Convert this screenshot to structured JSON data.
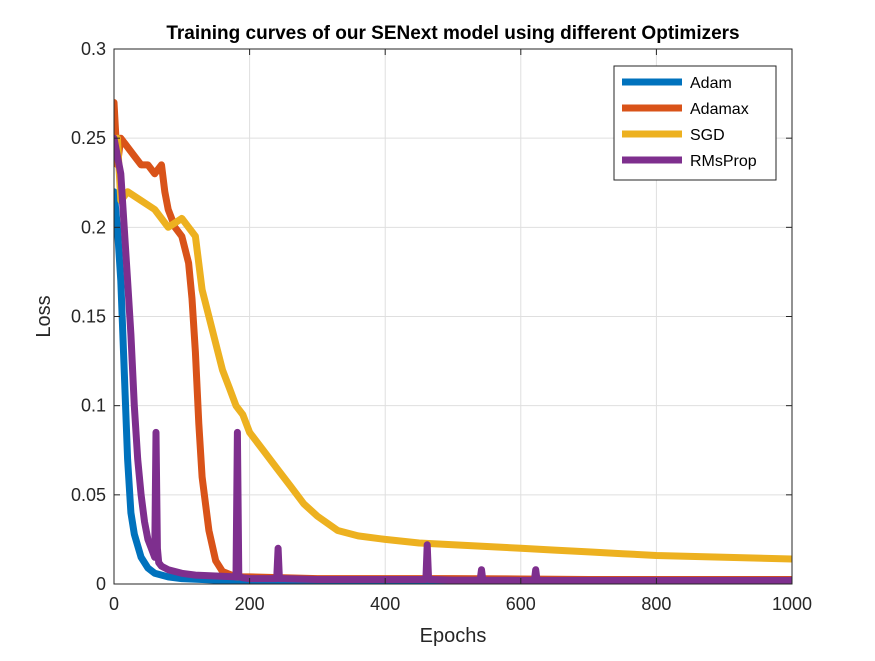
{
  "chart_data": {
    "type": "line",
    "title": "Training curves of our SENext model using different Optimizers",
    "xlabel": "Epochs",
    "ylabel": "Loss",
    "xlim": [
      0,
      1000
    ],
    "ylim": [
      0,
      0.3
    ],
    "xticks": [
      0,
      200,
      400,
      600,
      800,
      1000
    ],
    "xtick_labels": [
      "0",
      "200",
      "400",
      "600",
      "800",
      "1000"
    ],
    "yticks": [
      0,
      0.05,
      0.1,
      0.15,
      0.2,
      0.25,
      0.3
    ],
    "ytick_labels": [
      "0",
      "0.05",
      "0.1",
      "0.15",
      "0.2",
      "0.25",
      "0.3"
    ],
    "grid": true,
    "legend_position": "top-right",
    "series": [
      {
        "name": "Adam",
        "color": "#0072BD",
        "x": [
          0,
          5,
          10,
          15,
          20,
          25,
          30,
          40,
          50,
          60,
          80,
          100,
          130,
          160,
          200,
          300,
          400,
          500,
          600,
          700,
          800,
          900,
          1000
        ],
        "y": [
          0.22,
          0.2,
          0.17,
          0.12,
          0.07,
          0.04,
          0.028,
          0.015,
          0.009,
          0.006,
          0.004,
          0.003,
          0.0025,
          0.002,
          0.002,
          0.0015,
          0.0015,
          0.0012,
          0.0012,
          0.001,
          0.001,
          0.001,
          0.001
        ]
      },
      {
        "name": "Adamax",
        "color": "#D95319",
        "x": [
          0,
          5,
          10,
          20,
          30,
          40,
          50,
          60,
          70,
          75,
          80,
          90,
          100,
          110,
          115,
          120,
          125,
          130,
          140,
          150,
          160,
          180,
          200,
          300,
          400,
          500,
          600,
          700,
          800,
          900,
          1000
        ],
        "y": [
          0.27,
          0.235,
          0.25,
          0.245,
          0.24,
          0.235,
          0.235,
          0.23,
          0.235,
          0.22,
          0.21,
          0.2,
          0.195,
          0.18,
          0.16,
          0.13,
          0.09,
          0.06,
          0.03,
          0.013,
          0.007,
          0.004,
          0.004,
          0.003,
          0.003,
          0.003,
          0.0028,
          0.0025,
          0.0025,
          0.0025,
          0.0025
        ]
      },
      {
        "name": "SGD",
        "color": "#EDB120",
        "x": [
          0,
          5,
          10,
          20,
          40,
          60,
          80,
          100,
          120,
          130,
          140,
          150,
          160,
          170,
          180,
          190,
          200,
          220,
          240,
          260,
          280,
          300,
          330,
          360,
          400,
          450,
          500,
          550,
          600,
          650,
          700,
          750,
          800,
          850,
          900,
          950,
          1000
        ],
        "y": [
          0.24,
          0.25,
          0.215,
          0.22,
          0.215,
          0.21,
          0.2,
          0.205,
          0.195,
          0.165,
          0.15,
          0.135,
          0.12,
          0.11,
          0.1,
          0.095,
          0.085,
          0.075,
          0.065,
          0.055,
          0.045,
          0.038,
          0.03,
          0.027,
          0.025,
          0.023,
          0.022,
          0.021,
          0.02,
          0.019,
          0.018,
          0.017,
          0.016,
          0.0155,
          0.015,
          0.0145,
          0.014
        ]
      },
      {
        "name": "RMsProp",
        "color": "#7E2F8E",
        "x": [
          0,
          5,
          10,
          15,
          20,
          25,
          30,
          35,
          40,
          45,
          50,
          55,
          60,
          62,
          64,
          66,
          70,
          80,
          90,
          100,
          120,
          150,
          180,
          182,
          184,
          186,
          190,
          200,
          240,
          242,
          244,
          246,
          250,
          300,
          400,
          460,
          462,
          464,
          466,
          470,
          500,
          540,
          542,
          544,
          600,
          620,
          622,
          624,
          700,
          800,
          900,
          1000
        ],
        "y": [
          0.25,
          0.24,
          0.23,
          0.2,
          0.17,
          0.14,
          0.1,
          0.07,
          0.05,
          0.035,
          0.025,
          0.02,
          0.015,
          0.085,
          0.02,
          0.012,
          0.01,
          0.008,
          0.007,
          0.006,
          0.005,
          0.0045,
          0.004,
          0.085,
          0.004,
          0.004,
          0.0035,
          0.003,
          0.003,
          0.02,
          0.003,
          0.003,
          0.003,
          0.0025,
          0.0025,
          0.0025,
          0.022,
          0.0025,
          0.0025,
          0.0025,
          0.0022,
          0.0022,
          0.008,
          0.0022,
          0.002,
          0.002,
          0.008,
          0.002,
          0.002,
          0.002,
          0.002,
          0.002
        ]
      }
    ]
  }
}
